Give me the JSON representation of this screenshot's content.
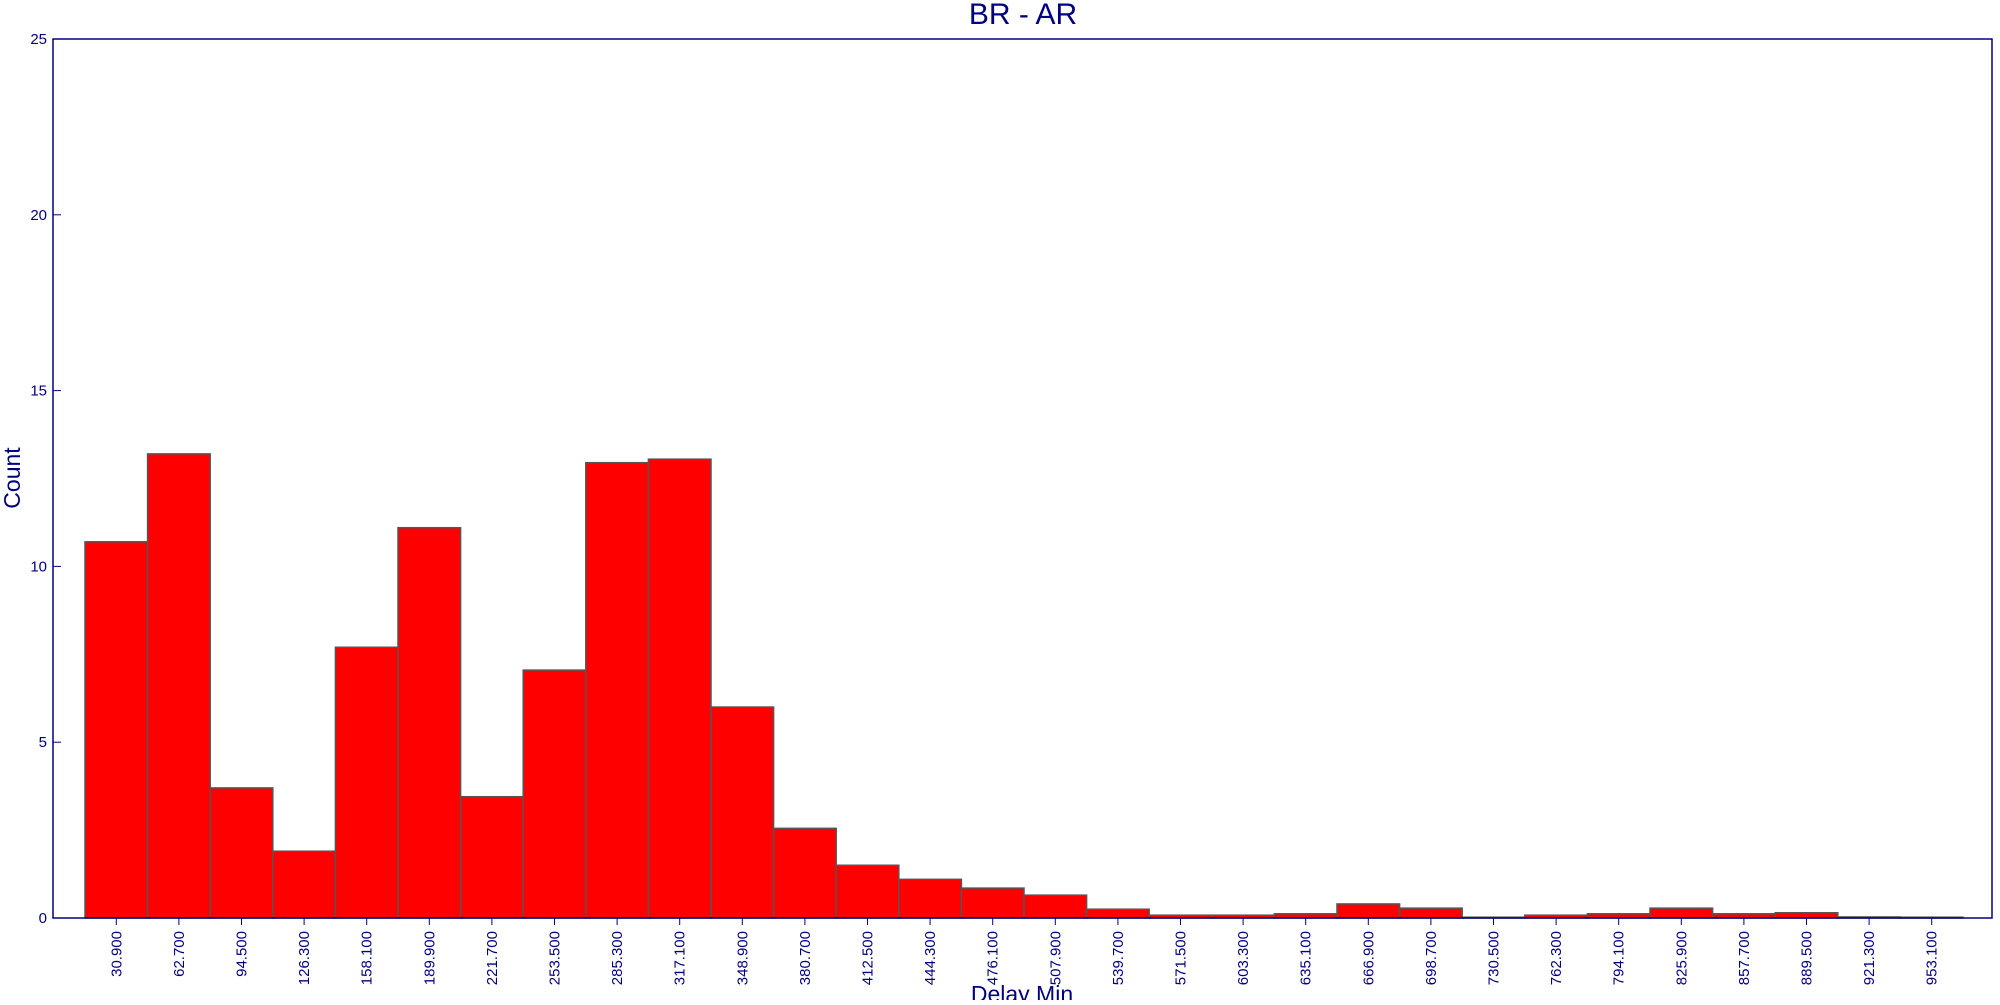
{
  "colors": {
    "text": "#000080",
    "frame": "#000080",
    "bar_fill": "#ff0000",
    "bar_stroke": "#555555",
    "background": "#ffffff"
  },
  "chart_data": {
    "type": "bar",
    "title": "BR - AR",
    "xlabel": "Delay Min",
    "ylabel": "Count",
    "ylim": [
      0,
      25
    ],
    "yticks": [
      0,
      5,
      10,
      15,
      20,
      25
    ],
    "grid": false,
    "legend": "none",
    "categories": [
      "30.900",
      "62.700",
      "94.500",
      "126.300",
      "158.100",
      "189.900",
      "221.700",
      "253.500",
      "285.300",
      "317.100",
      "348.900",
      "380.700",
      "412.500",
      "444.300",
      "476.100",
      "507.900",
      "539.700",
      "571.500",
      "603.300",
      "635.100",
      "666.900",
      "698.700",
      "730.500",
      "762.300",
      "794.100",
      "825.900",
      "857.700",
      "889.500",
      "921.300",
      "953.100"
    ],
    "values": [
      10.7,
      13.2,
      3.7,
      1.9,
      7.7,
      11.1,
      3.45,
      7.05,
      12.95,
      13.05,
      6.0,
      2.55,
      1.5,
      1.1,
      0.85,
      0.65,
      0.25,
      0.08,
      0.08,
      0.12,
      0.4,
      0.28,
      0.0,
      0.08,
      0.12,
      0.28,
      0.12,
      0.15,
      0.03,
      0.02
    ]
  }
}
